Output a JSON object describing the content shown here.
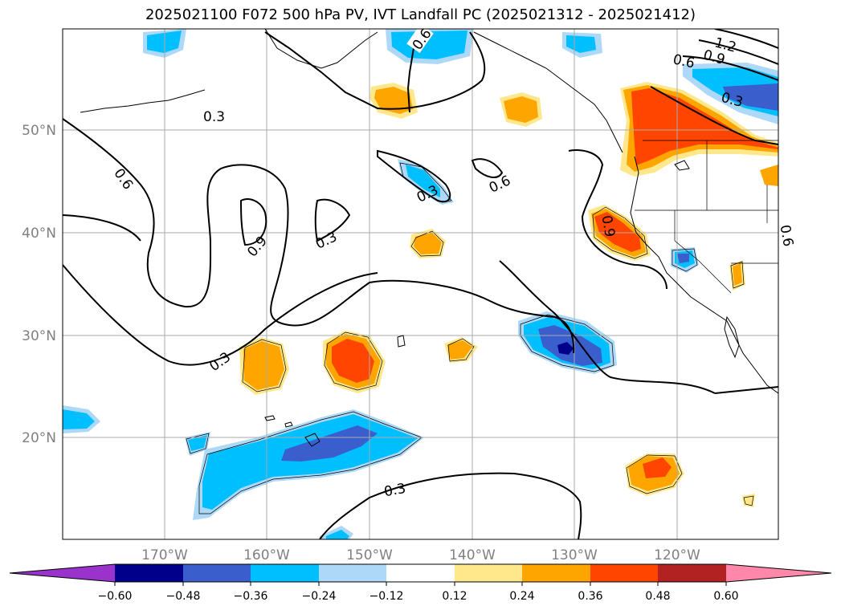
{
  "title": "2025021100 F072 500 hPa PV, IVT Landfall PC (2025021312 - 2025021412)",
  "lat_labels": [
    "50°N",
    "40°N",
    "30°N",
    "20°N"
  ],
  "lon_labels": [
    "170°W",
    "160°W",
    "150°W",
    "140°W",
    "130°W",
    "120°W"
  ],
  "contour_labels": [
    "0.3",
    "0.6",
    "0.9",
    "1.2",
    "0.6",
    "0.9",
    "0.3",
    "0.6",
    "0.3",
    "0.9",
    "0.3",
    "0.6",
    "0.3",
    "0.3",
    "0.9",
    "0.6",
    "0.3"
  ],
  "colorbar": {
    "tick_labels": [
      "−0.60",
      "−0.48",
      "−0.36",
      "−0.24",
      "−0.12",
      "0.12",
      "0.24",
      "0.36",
      "0.48",
      "0.60"
    ],
    "colors": [
      "#9933cc",
      "#00008b",
      "#3a5fcd",
      "#00bfff",
      "#add8f7",
      "#ffffff",
      "#ffe88c",
      "#ffa500",
      "#ff4500",
      "#b22222",
      "#ff88aa"
    ]
  },
  "colors": {
    "neg_light": "#add8f7",
    "neg_mid": "#00bfff",
    "neg_strong": "#3a5fcd",
    "neg_extreme": "#00008b",
    "pos_light": "#ffe88c",
    "pos_mid": "#ffa500",
    "pos_strong": "#ff4500",
    "pos_extreme": "#b22222",
    "gridline": "#aaaaaa",
    "contour": "#000000"
  }
}
